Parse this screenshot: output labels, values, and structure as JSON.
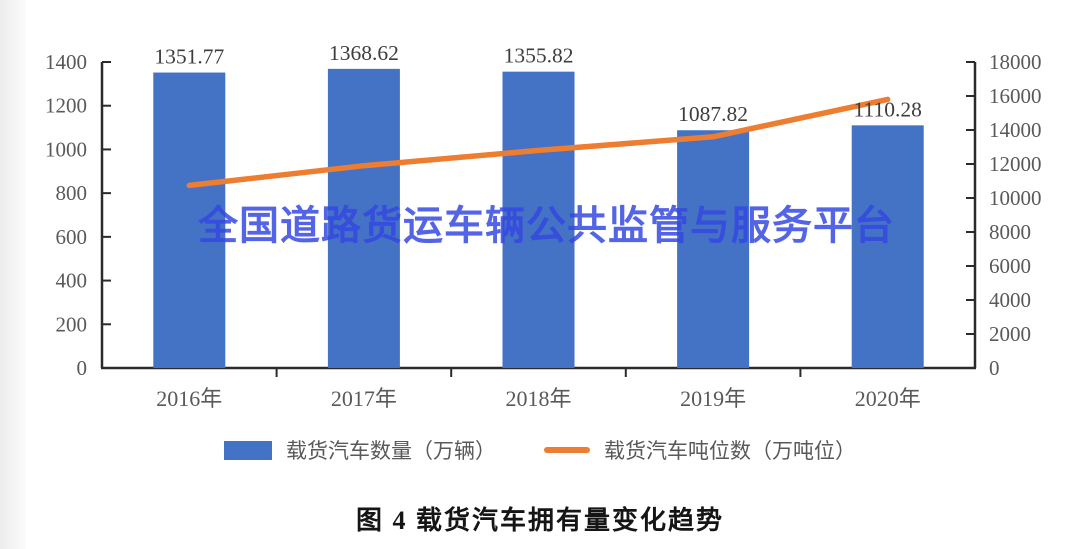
{
  "figure": {
    "watermark": "全国道路货运车辆公共监管与服务平台",
    "caption": "图 4  载货汽车拥有量变化趋势"
  },
  "chart_data": {
    "type": "combo-bar-line",
    "title": "图 4  载货汽车拥有量变化趋势",
    "categories": [
      "2016年",
      "2017年",
      "2018年",
      "2019年",
      "2020年"
    ],
    "series": [
      {
        "name": "载货汽车数量（万辆）",
        "type": "bar",
        "axis": "left",
        "color": "#4472C4",
        "values": [
          1351.77,
          1368.62,
          1355.82,
          1087.82,
          1110.28
        ],
        "data_labels": [
          "1351.77",
          "1368.62",
          "1355.82",
          "1087.82",
          "1110.28"
        ]
      },
      {
        "name": "载货汽车吨位数（万吨位）",
        "type": "line",
        "axis": "right",
        "color": "#ED7D31",
        "values": [
          10740,
          11900,
          12800,
          13600,
          15800
        ],
        "values_note": "estimated from line position; no data labels printed on chart"
      }
    ],
    "left_axis": {
      "min": 0,
      "max": 1400,
      "step": 200,
      "tick_labels": [
        "0",
        "200",
        "400",
        "600",
        "800",
        "1000",
        "1200",
        "1400"
      ]
    },
    "right_axis": {
      "min": 0,
      "max": 18000,
      "step": 2000,
      "tick_labels": [
        "0",
        "2000",
        "4000",
        "6000",
        "8000",
        "10000",
        "12000",
        "14000",
        "16000",
        "18000"
      ]
    },
    "grid": false,
    "legend_position": "bottom",
    "colors": {
      "bar": "#4472C4",
      "line": "#ED7D31",
      "axis": "#2b2b2b",
      "tick_text": "#595959",
      "data_label_text": "#3d3d3d",
      "watermark": "#3447E2",
      "caption_text": "#151515",
      "background": "#ffffff"
    }
  }
}
